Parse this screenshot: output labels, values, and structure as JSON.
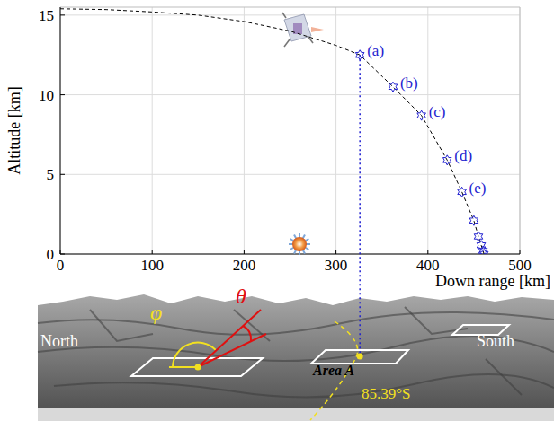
{
  "chart_data": {
    "type": "line",
    "x_label": "Down range [km]",
    "y_label": "Altitude [km]",
    "xlim": [
      0,
      500
    ],
    "ylim": [
      0,
      15.5
    ],
    "xticks": [
      0,
      100,
      200,
      300,
      400,
      500
    ],
    "yticks": [
      0,
      5,
      10,
      15
    ],
    "grid": true,
    "series": [
      {
        "type": "line",
        "color": "#000000",
        "line_style": "dashed",
        "x": [
          0,
          50,
          100,
          150,
          200,
          250,
          300,
          326,
          362,
          393,
          421,
          437,
          450,
          455,
          458,
          460,
          461
        ],
        "values": [
          15.4,
          15.35,
          15.2,
          15.0,
          14.6,
          14.0,
          13.1,
          12.5,
          10.5,
          8.7,
          5.9,
          3.9,
          2.1,
          1.1,
          0.55,
          0.2,
          0
        ]
      },
      {
        "type": "scatter",
        "color": "#1f1fd0",
        "marker": "hexagram",
        "x": [
          326,
          362,
          393,
          421,
          437,
          450,
          455,
          458,
          460,
          461
        ],
        "values": [
          12.5,
          10.5,
          8.7,
          5.9,
          3.9,
          2.1,
          1.1,
          0.55,
          0.2,
          0
        ],
        "point_labels": [
          "(a)",
          "(b)",
          "(c)",
          "(d)",
          "(e)",
          null,
          null,
          null,
          null,
          null
        ]
      }
    ]
  },
  "terrain": {
    "labels": {
      "north": "North",
      "south": "South",
      "area": "Area A",
      "latitude": "85.39°S",
      "azimuth_symbol": "φ",
      "elevation_symbol": "θ"
    }
  }
}
